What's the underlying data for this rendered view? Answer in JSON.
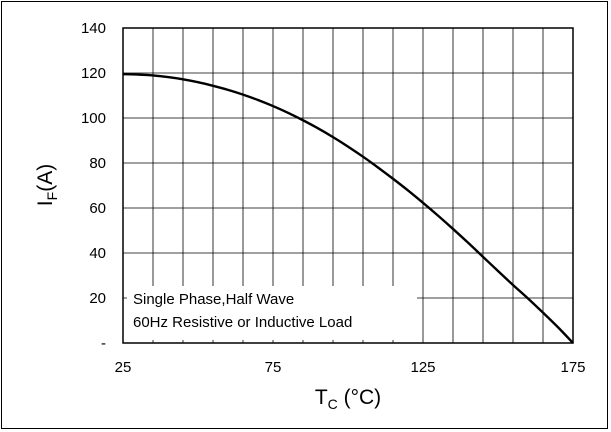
{
  "chart_data": {
    "type": "line",
    "x_axis": {
      "label_main": "T",
      "label_sub": "C",
      "label_unit": " (°C)",
      "ticks": [
        25,
        75,
        125,
        175
      ],
      "tick_labels": [
        "25",
        "75",
        "125",
        "175"
      ],
      "range": [
        25,
        175
      ],
      "gridlines": [
        25,
        35,
        45,
        55,
        65,
        75,
        85,
        95,
        105,
        115,
        125,
        135,
        145,
        155,
        165,
        175
      ]
    },
    "y_axis": {
      "label_main": "I",
      "label_sub": "F",
      "label_unit": "(A)",
      "ticks": [
        0,
        20,
        40,
        60,
        80,
        100,
        120,
        140
      ],
      "tick_labels": [
        "-",
        "20",
        "40",
        "60",
        "80",
        "100",
        "120",
        "140"
      ],
      "range": [
        0,
        140
      ]
    },
    "grid": true,
    "annotation": [
      "Single  Phase,Half  Wave",
      "60Hz  Resistive or Inductive Load"
    ],
    "series": [
      {
        "x": [
          25,
          30,
          35,
          40,
          45,
          50,
          55,
          60,
          65,
          70,
          75,
          80,
          85,
          90,
          95,
          100,
          105,
          110,
          115,
          120,
          125,
          130,
          135,
          140,
          145,
          150,
          155,
          160,
          165,
          170,
          175
        ],
        "y": [
          119.5,
          119.3,
          118.9,
          118.2,
          117.2,
          115.9,
          114.3,
          112.5,
          110.4,
          108.0,
          105.3,
          102.3,
          99.0,
          95.4,
          91.5,
          87.3,
          82.8,
          78.0,
          73.0,
          67.8,
          62.3,
          56.6,
          50.7,
          44.6,
          38.3,
          32.0,
          25.8,
          19.8,
          13.5,
          7.0,
          0.0
        ]
      }
    ]
  }
}
